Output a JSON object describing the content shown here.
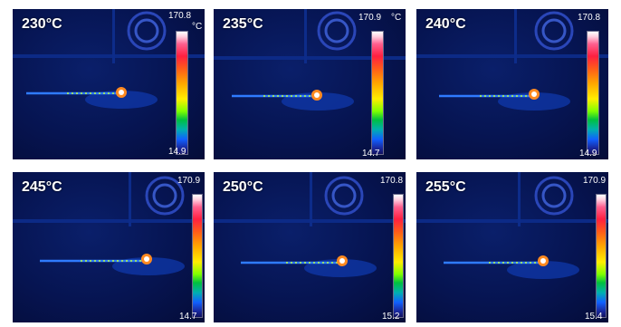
{
  "panels": [
    {
      "temp": "230°C",
      "max": "170.8",
      "min": "14.9",
      "unit": "°C"
    },
    {
      "temp": "235°C",
      "max": "170.9",
      "min": "14.7",
      "unit": "°C"
    },
    {
      "temp": "240°C",
      "max": "170.8",
      "min": "14.9",
      "unit": ""
    },
    {
      "temp": "245°C",
      "max": "170.9",
      "min": "14.7",
      "unit": ""
    },
    {
      "temp": "250°C",
      "max": "170.8",
      "min": "15.2",
      "unit": ""
    },
    {
      "temp": "255°C",
      "max": "170.9",
      "min": "15.4",
      "unit": ""
    }
  ],
  "colors": {
    "background": "#061451",
    "hotspot": "#ffffff",
    "trail": "#ffee00",
    "fan": "#3a5bd0"
  }
}
